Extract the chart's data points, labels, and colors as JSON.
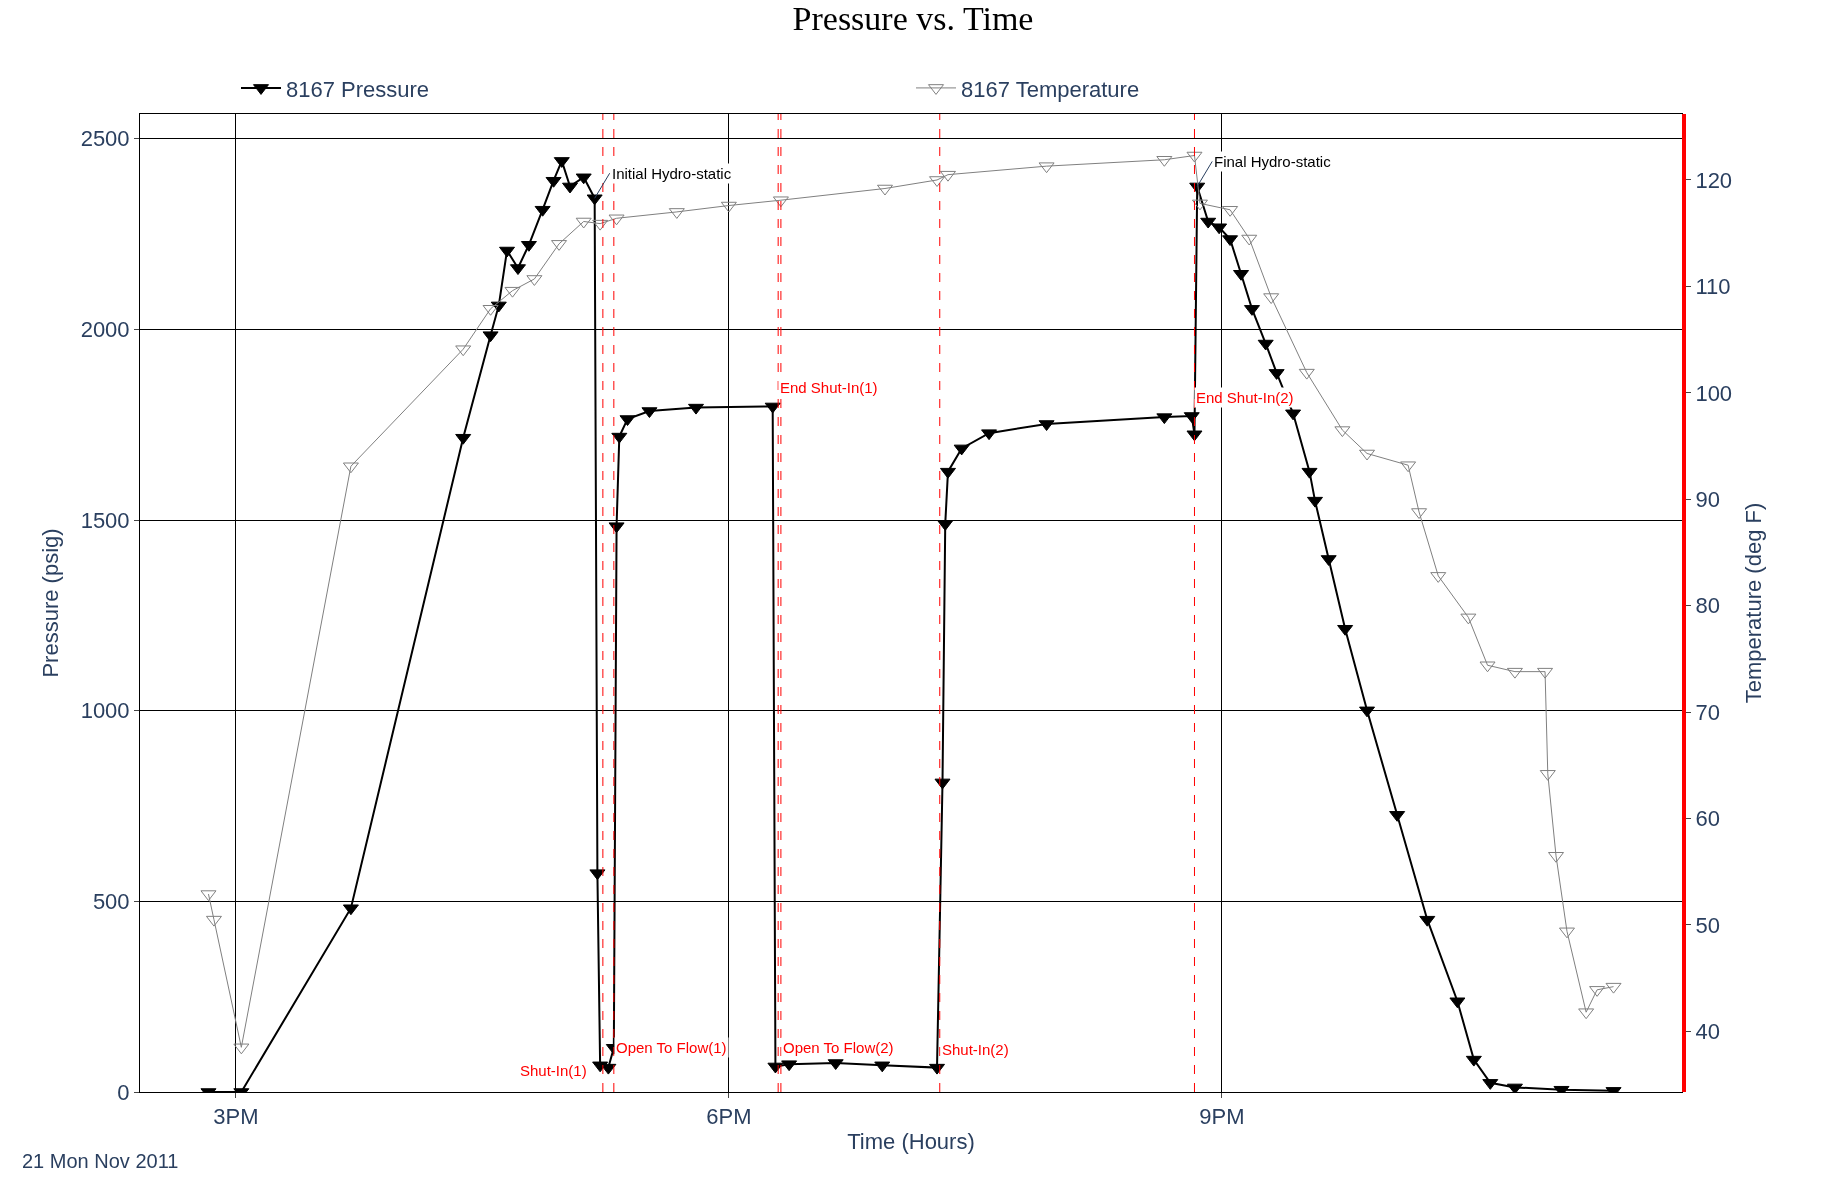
{
  "chart_data": {
    "type": "line",
    "title": "Pressure vs. Time",
    "xlabel": "Time (Hours)",
    "ylabel": "Pressure (psig)",
    "y2label": "Temperature (deg F)",
    "xlim": [
      "2011-11-21T14:25",
      "2011-11-21T23:48"
    ],
    "xticks": [
      {
        "value": "2011-11-21T15:00",
        "label": "3PM"
      },
      {
        "value": "2011-11-21T18:00",
        "label": "6PM"
      },
      {
        "value": "2011-11-21T21:00",
        "label": "9PM"
      }
    ],
    "ylim": [
      0,
      2565
    ],
    "yticks": [
      0,
      500,
      1000,
      1500,
      2000,
      2500
    ],
    "y2lim": [
      34.3,
      126.2
    ],
    "y2ticks": [
      40,
      50,
      60,
      70,
      80,
      90,
      100,
      110,
      120
    ],
    "grid": true,
    "legend": "top",
    "line_style": "solid",
    "series": [
      {
        "name": "8167 Pressure",
        "color": "#000000",
        "marker": "triangle-down",
        "x": [
          "2011-11-21T14:50",
          "2011-11-21T15:02",
          "2011-11-21T15:42",
          "2011-11-21T16:23",
          "2011-11-21T16:33",
          "2011-11-21T16:36",
          "2011-11-21T16:39",
          "2011-11-21T16:43",
          "2011-11-21T16:47",
          "2011-11-21T16:52",
          "2011-11-21T16:56",
          "2011-11-21T16:59",
          "2011-11-21T17:02",
          "2011-11-21T17:07",
          "2011-11-21T17:11",
          "2011-11-21T17:12",
          "2011-11-21T17:13",
          "2011-11-21T17:16",
          "2011-11-21T17:18",
          "2011-11-21T17:19",
          "2011-11-21T17:20",
          "2011-11-21T17:23",
          "2011-11-21T17:31",
          "2011-11-21T17:48",
          "2011-11-21T18:16",
          "2011-11-21T18:17",
          "2011-11-21T18:22",
          "2011-11-21T18:39",
          "2011-11-21T18:56",
          "2011-11-21T19:16",
          "2011-11-21T19:18",
          "2011-11-21T19:19",
          "2011-11-21T19:20",
          "2011-11-21T19:25",
          "2011-11-21T19:35",
          "2011-11-21T19:56",
          "2011-11-21T20:39",
          "2011-11-21T20:49",
          "2011-11-21T20:50",
          "2011-11-21T20:51",
          "2011-11-21T20:55",
          "2011-11-21T20:59",
          "2011-11-21T21:03",
          "2011-11-21T21:07",
          "2011-11-21T21:11",
          "2011-11-21T21:16",
          "2011-11-21T21:20",
          "2011-11-21T21:26",
          "2011-11-21T21:32",
          "2011-11-21T21:34",
          "2011-11-21T21:39",
          "2011-11-21T21:45",
          "2011-11-21T21:53",
          "2011-11-21T22:04",
          "2011-11-21T22:15",
          "2011-11-21T22:26",
          "2011-11-21T22:32",
          "2011-11-21T22:38",
          "2011-11-21T22:47",
          "2011-11-21T23:04",
          "2011-11-21T23:23"
        ],
        "values": [
          0,
          0,
          482,
          1716,
          1985,
          2063,
          2207,
          2161,
          2222,
          2314,
          2390,
          2442,
          2375,
          2399,
          2344,
          574,
          70,
          64,
          116,
          1484,
          1719,
          1765,
          1786,
          1795,
          1798,
          67,
          73,
          76,
          70,
          64,
          812,
          1490,
          1627,
          1688,
          1728,
          1752,
          1770,
          1773,
          1725,
          2375,
          2283,
          2268,
          2237,
          2146,
          2054,
          1963,
          1886,
          1780,
          1627,
          1551,
          1398,
          1215,
          1001,
          727,
          452,
          238,
          85,
          24,
          12,
          6,
          3
        ]
      },
      {
        "name": "8167 Temperature",
        "color": "#808080",
        "marker": "triangle-down-open",
        "axis": "y2",
        "x": [
          "2011-11-21T14:50",
          "2011-11-21T14:52",
          "2011-11-21T15:02",
          "2011-11-21T15:42",
          "2011-11-21T16:23",
          "2011-11-21T16:33",
          "2011-11-21T16:41",
          "2011-11-21T16:49",
          "2011-11-21T16:58",
          "2011-11-21T17:07",
          "2011-11-21T17:13",
          "2011-11-21T17:19",
          "2011-11-21T17:41",
          "2011-11-21T18:00",
          "2011-11-21T18:19",
          "2011-11-21T18:57",
          "2011-11-21T19:16",
          "2011-11-21T19:20",
          "2011-11-21T19:56",
          "2011-11-21T20:39",
          "2011-11-21T20:50",
          "2011-11-21T20:52",
          "2011-11-21T21:03",
          "2011-11-21T21:10",
          "2011-11-21T21:18",
          "2011-11-21T21:31",
          "2011-11-21T21:44",
          "2011-11-21T21:53",
          "2011-11-21T22:08",
          "2011-11-21T22:12",
          "2011-11-21T22:19",
          "2011-11-21T22:30",
          "2011-11-21T22:37",
          "2011-11-21T22:47",
          "2011-11-21T22:58",
          "2011-11-21T22:59",
          "2011-11-21T23:02",
          "2011-11-21T23:06",
          "2011-11-21T23:13",
          "2011-11-21T23:17",
          "2011-11-21T23:23"
        ],
        "values": [
          52.9,
          50.5,
          38.5,
          93.1,
          104.1,
          107.9,
          109.6,
          110.7,
          114.0,
          116.1,
          115.9,
          116.4,
          117.0,
          117.6,
          118.1,
          119.2,
          120.0,
          120.5,
          121.3,
          121.9,
          122.3,
          117.8,
          117.2,
          114.5,
          109.0,
          101.9,
          96.5,
          94.3,
          93.2,
          88.8,
          82.8,
          78.9,
          74.4,
          73.8,
          73.8,
          64.2,
          56.5,
          49.4,
          41.8,
          43.9,
          44.2
        ]
      }
    ],
    "ref_lines": [
      {
        "axis": "x",
        "value": "2011-11-21T17:14",
        "color": "#ff0000",
        "line_style": "dashed"
      },
      {
        "axis": "x",
        "value": "2011-11-21T17:18",
        "color": "#ff0000",
        "line_style": "dashed"
      },
      {
        "axis": "x",
        "value": "2011-11-21T18:18",
        "color": "#ff0000",
        "line_style": "dashed"
      },
      {
        "axis": "x",
        "value": "2011-11-21T18:19",
        "color": "#ff0000",
        "line_style": "dashed"
      },
      {
        "axis": "x",
        "value": "2011-11-21T19:17",
        "color": "#ff0000",
        "line_style": "dashed"
      },
      {
        "axis": "x",
        "value": "2011-11-21T20:50",
        "color": "#ff0000",
        "line_style": "dashed"
      }
    ],
    "annotations": [
      {
        "text": "Shut-In(1)",
        "x": "2011-11-21T17:14",
        "y": 30
      },
      {
        "text": "Open To Flow(1)",
        "x": "2011-11-21T17:18",
        "y": 88
      },
      {
        "text": "End Shut-In(1)",
        "x": "2011-11-21T18:18",
        "y": 1820
      },
      {
        "text": "Open To Flow(2)",
        "x": "2011-11-21T18:19",
        "y": 90
      },
      {
        "text": "Shut-In(2)",
        "x": "2011-11-21T19:17",
        "y": 85
      },
      {
        "text": "End Shut-In(2)",
        "x": "2011-11-21T20:50",
        "y": 1795
      },
      {
        "text": "Initial Hydro-static",
        "x": "2011-11-21T17:11",
        "y": 2344
      },
      {
        "text": "Final Hydro-static",
        "x": "2011-11-21T20:51",
        "y": 2375
      },
      "21 Mon Nov 2011"
    ]
  }
}
